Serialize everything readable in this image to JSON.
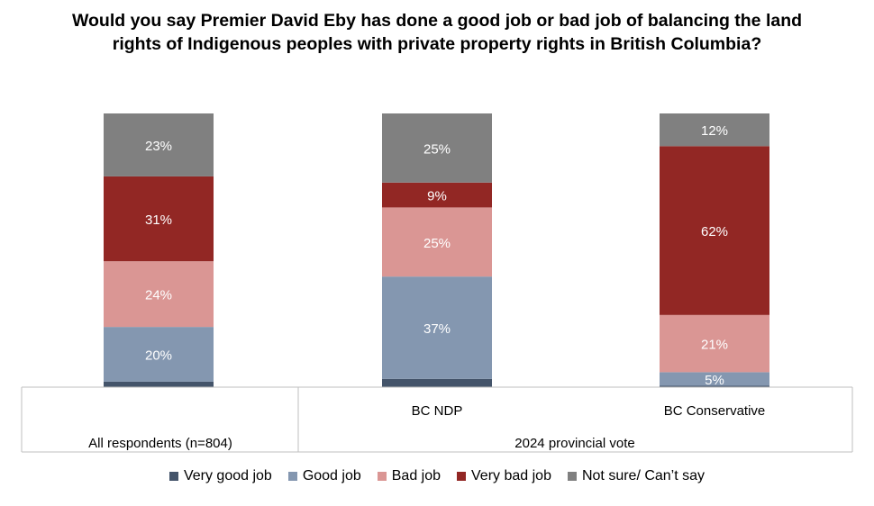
{
  "chart_data": {
    "type": "stacked-bar",
    "title": "Would you say Premier David Eby has done a good job or bad job of balancing the land rights of Indigenous peoples with private property rights in British Columbia?",
    "categories": [
      "All respondents (n=804)",
      "BC NDP",
      "BC Conservative"
    ],
    "group_labels": [
      "All respondents (n=804)",
      "2024 provincial vote"
    ],
    "ylim": [
      0,
      100
    ],
    "legend_position": "bottom",
    "series": [
      {
        "name": "Very good job",
        "color": "#44546A",
        "values": [
          2,
          3,
          0.5
        ],
        "labels": [
          "",
          "",
          ""
        ]
      },
      {
        "name": "Good job",
        "color": "#8497B0",
        "values": [
          20,
          37,
          5
        ],
        "labels": [
          "20%",
          "37%",
          "5%"
        ]
      },
      {
        "name": "Bad job",
        "color": "#DA9694",
        "values": [
          24,
          25,
          21
        ],
        "labels": [
          "24%",
          "25%",
          "21%"
        ]
      },
      {
        "name": "Very bad job",
        "color": "#922724",
        "values": [
          31,
          9,
          62
        ],
        "labels": [
          "31%",
          "9%",
          "62%"
        ]
      },
      {
        "name": "Not sure/ Can’t say",
        "color": "#808080",
        "values": [
          23,
          25,
          12
        ],
        "labels": [
          "23%",
          "25%",
          "12%"
        ]
      }
    ]
  }
}
